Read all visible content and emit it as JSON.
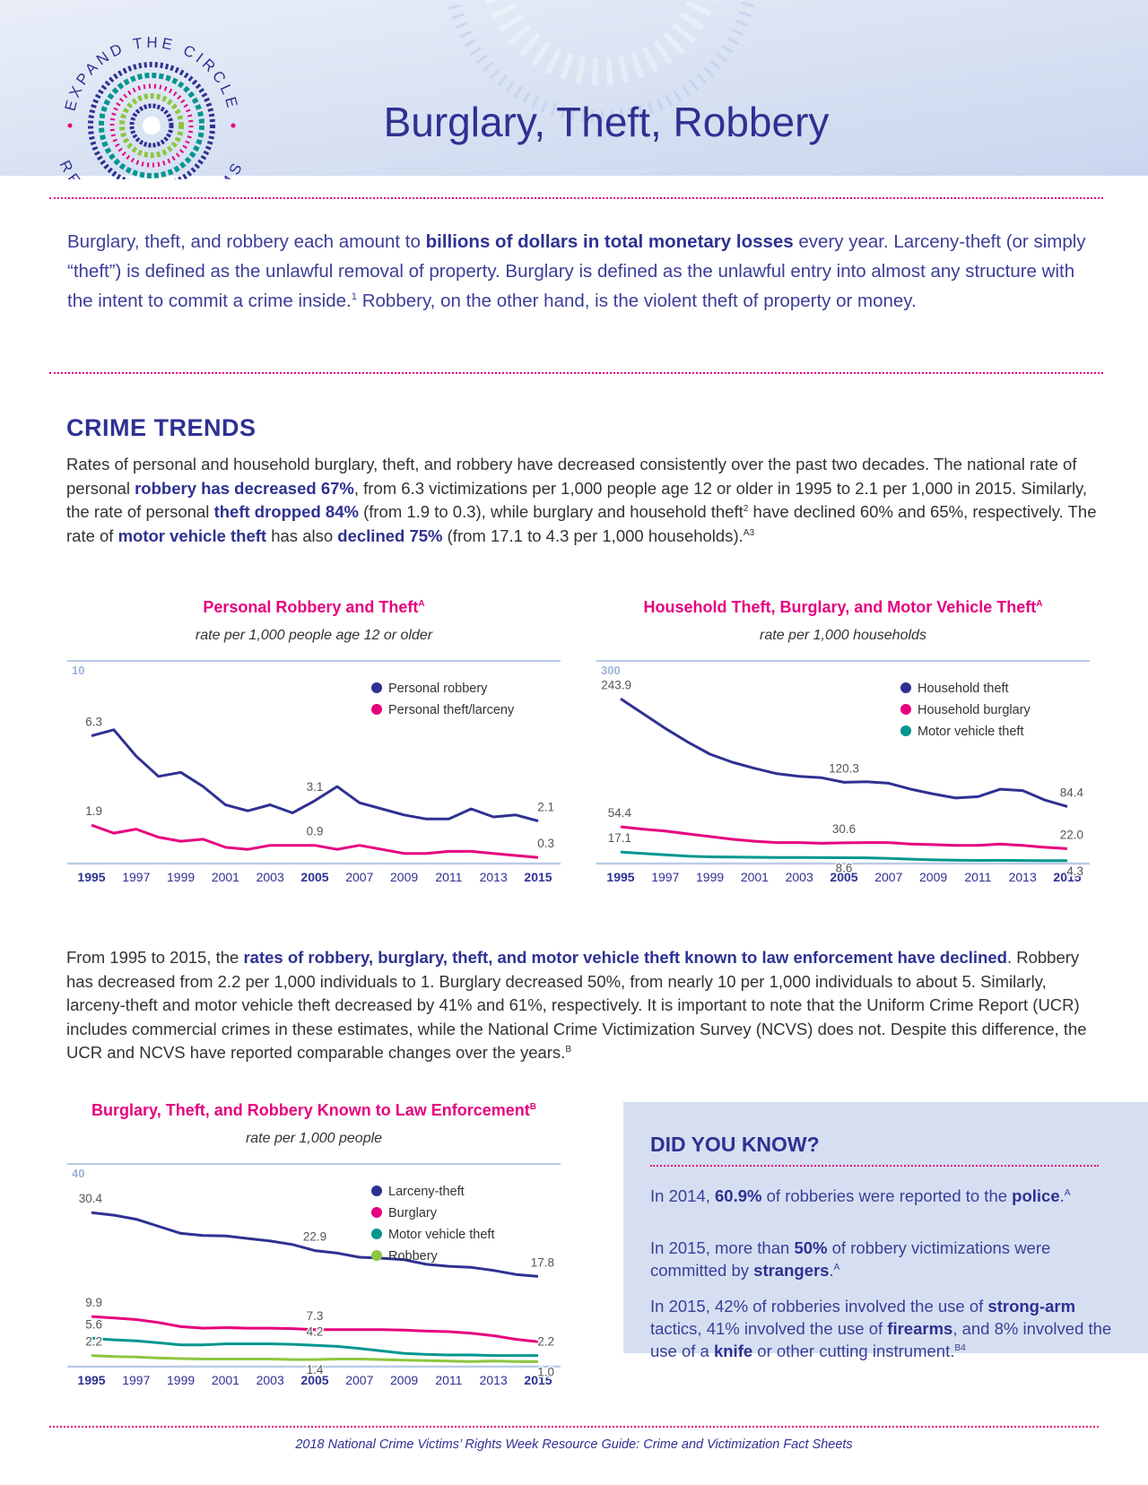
{
  "header": {
    "title": "Burglary, Theft, Robbery",
    "logo_top": "EXPAND THE CIRCLE",
    "logo_bottom": "REACH ALL VICTIMS"
  },
  "intro": [
    "Burglary, theft, and robbery each amount to ",
    {
      "text": "billions of dollars in total monetary losses",
      "bold": true
    },
    " every year. Larceny-theft (or simply “theft”) is defined as the unlawful removal of property. Burglary is defined as the unlawful entry into almost any structure with the intent to commit a crime inside.",
    {
      "text": "1",
      "sup": true
    },
    " Robbery, on the other hand, is the violent theft of property or money."
  ],
  "crime_trends": {
    "heading": "CRIME TRENDS",
    "paragraph": [
      "Rates of personal and household burglary, theft, and robbery have decreased consistently over the past two decades. The national rate of personal ",
      {
        "text": "robbery has decreased 67%",
        "bold": true
      },
      ", from 6.3 victimizations per 1,000 people age 12 or older in 1995 to 2.1 per 1,000 in 2015. Similarly, the rate of personal ",
      {
        "text": "theft dropped 84%",
        "bold": true
      },
      " (from 1.9 to 0.3), while burglary and household theft",
      {
        "text": "2",
        "sup": true
      },
      " have declined 60% and 65%, respectively. The rate of ",
      {
        "text": "motor vehicle theft",
        "bold": true
      },
      " has also ",
      {
        "text": "declined 75%",
        "bold": true
      },
      " (from 17.1 to 4.3 per 1,000 households).",
      {
        "text": "A3",
        "sup": true
      }
    ]
  },
  "chart_data": [
    {
      "type": "line",
      "title": "Personal Robbery and Theft",
      "title_note": "A",
      "subtitle": "rate per 1,000 people age 12 or older",
      "x": [
        1995,
        1996,
        1997,
        1998,
        1999,
        2000,
        2001,
        2002,
        2003,
        2004,
        2005,
        2006,
        2007,
        2008,
        2009,
        2010,
        2011,
        2012,
        2013,
        2014,
        2015
      ],
      "xlim": [
        1995,
        2015
      ],
      "xticks": [
        1995,
        1997,
        1999,
        2001,
        2003,
        2005,
        2007,
        2009,
        2011,
        2013,
        2015
      ],
      "ylim": [
        0,
        10
      ],
      "yticks": [
        10
      ],
      "legend": "top-right",
      "series": [
        {
          "name": "Personal robbery",
          "color": "#2e3192",
          "values": [
            6.3,
            6.6,
            5.3,
            4.3,
            4.5,
            3.8,
            2.9,
            2.6,
            2.9,
            2.5,
            3.1,
            3.8,
            3.0,
            2.7,
            2.4,
            2.2,
            2.2,
            2.7,
            2.3,
            2.4,
            2.1
          ],
          "value_labels": [
            "6.3",
            null,
            null,
            null,
            null,
            null,
            null,
            null,
            null,
            null,
            "3.1",
            null,
            null,
            null,
            null,
            null,
            null,
            null,
            null,
            null,
            "2.1"
          ]
        },
        {
          "name": "Personal theft/larceny",
          "color": "#e6007e",
          "values": [
            1.9,
            1.5,
            1.7,
            1.3,
            1.1,
            1.2,
            0.8,
            0.7,
            0.9,
            0.9,
            0.9,
            0.7,
            0.9,
            0.7,
            0.5,
            0.5,
            0.6,
            0.6,
            0.5,
            0.4,
            0.3
          ],
          "value_labels": [
            "1.9",
            null,
            null,
            null,
            null,
            null,
            null,
            null,
            null,
            null,
            "0.9",
            null,
            null,
            null,
            null,
            null,
            null,
            null,
            null,
            null,
            "0.3"
          ]
        }
      ]
    },
    {
      "type": "line",
      "title": "Household Theft, Burglary, and Motor Vehicle Theft",
      "title_note": "A",
      "subtitle": "rate per 1,000 households",
      "x": [
        1995,
        1996,
        1997,
        1998,
        1999,
        2000,
        2001,
        2002,
        2003,
        2004,
        2005,
        2006,
        2007,
        2008,
        2009,
        2010,
        2011,
        2012,
        2013,
        2014,
        2015
      ],
      "xlim": [
        1995,
        2015
      ],
      "xticks": [
        1995,
        1997,
        1999,
        2001,
        2003,
        2005,
        2007,
        2009,
        2011,
        2013,
        2015
      ],
      "ylim": [
        0,
        300
      ],
      "yticks": [
        300
      ],
      "legend": "top-right",
      "series": [
        {
          "name": "Household theft",
          "color": "#2e3192",
          "values": [
            243.9,
            222,
            200,
            180,
            162,
            150,
            141,
            133,
            129,
            127,
            120.3,
            121,
            119,
            110,
            103,
            97,
            99,
            110,
            108,
            94,
            84.4
          ],
          "value_labels": [
            "243.9",
            null,
            null,
            null,
            null,
            null,
            null,
            null,
            null,
            null,
            "120.3",
            null,
            null,
            null,
            null,
            null,
            null,
            null,
            null,
            null,
            "84.4"
          ]
        },
        {
          "name": "Household burglary",
          "color": "#e6007e",
          "values": [
            54.4,
            51,
            48,
            44,
            40,
            36,
            33,
            31,
            31,
            30,
            30.6,
            31,
            31,
            29,
            28,
            27,
            27,
            29,
            27,
            24,
            22.0
          ],
          "value_labels": [
            "54.4",
            null,
            null,
            null,
            null,
            null,
            null,
            null,
            null,
            null,
            "30.6",
            null,
            null,
            null,
            null,
            null,
            null,
            null,
            null,
            null,
            "22.0"
          ]
        },
        {
          "name": "Motor vehicle theft",
          "color": "#00968f",
          "values": [
            17.1,
            15,
            13,
            11,
            10,
            9.5,
            9.3,
            9.0,
            9.0,
            8.8,
            8.6,
            8.5,
            7.7,
            6.5,
            5.5,
            5.1,
            4.6,
            4.8,
            4.5,
            4.4,
            4.3
          ],
          "value_labels": [
            "17.1",
            null,
            null,
            null,
            null,
            null,
            null,
            null,
            null,
            null,
            "8.6",
            null,
            null,
            null,
            null,
            null,
            null,
            null,
            null,
            null,
            "4.3"
          ]
        }
      ]
    },
    {
      "type": "line",
      "title": "Burglary, Theft, and Robbery Known to Law Enforcement",
      "title_note": "B",
      "subtitle": "rate per 1,000 people",
      "x": [
        1995,
        1996,
        1997,
        1998,
        1999,
        2000,
        2001,
        2002,
        2003,
        2004,
        2005,
        2006,
        2007,
        2008,
        2009,
        2010,
        2011,
        2012,
        2013,
        2014,
        2015
      ],
      "xlim": [
        1995,
        2015
      ],
      "xticks": [
        1995,
        1997,
        1999,
        2001,
        2003,
        2005,
        2007,
        2009,
        2011,
        2013,
        2015
      ],
      "ylim": [
        0,
        40
      ],
      "yticks": [
        40
      ],
      "legend": "top-right",
      "series": [
        {
          "name": "Larceny-theft",
          "color": "#2e3192",
          "values": [
            30.4,
            29.9,
            29.1,
            27.7,
            26.3,
            25.9,
            25.8,
            25.3,
            24.8,
            24.1,
            22.9,
            22.4,
            21.6,
            21.4,
            21.1,
            20.2,
            19.8,
            19.6,
            19.0,
            18.2,
            17.8
          ],
          "value_labels": [
            "30.4",
            null,
            null,
            null,
            null,
            null,
            null,
            null,
            null,
            null,
            "22.9",
            null,
            null,
            null,
            null,
            null,
            null,
            null,
            null,
            null,
            "17.8"
          ]
        },
        {
          "name": "Burglary",
          "color": "#e6007e",
          "values": [
            9.9,
            9.6,
            9.3,
            8.7,
            7.9,
            7.6,
            7.7,
            7.6,
            7.6,
            7.5,
            7.3,
            7.3,
            7.3,
            7.3,
            7.2,
            7.0,
            6.9,
            6.6,
            6.1,
            5.4,
            4.9
          ],
          "value_labels": [
            "9.9",
            null,
            null,
            null,
            null,
            null,
            null,
            null,
            null,
            null,
            "7.3",
            null,
            null,
            null,
            null,
            null,
            null,
            null,
            null,
            null,
            null
          ]
        },
        {
          "name": "Motor vehicle theft",
          "color": "#00968f",
          "values": [
            5.6,
            5.3,
            5.1,
            4.7,
            4.3,
            4.3,
            4.5,
            4.5,
            4.5,
            4.4,
            4.2,
            4.0,
            3.6,
            3.1,
            2.6,
            2.4,
            2.3,
            2.3,
            2.2,
            2.2,
            2.2
          ],
          "value_labels": [
            "5.6",
            null,
            null,
            null,
            null,
            null,
            null,
            null,
            null,
            null,
            "4.2",
            null,
            null,
            null,
            null,
            null,
            null,
            null,
            null,
            null,
            "2.2"
          ]
        },
        {
          "name": "Robbery",
          "color": "#8dc63f",
          "values": [
            2.2,
            2.0,
            1.9,
            1.7,
            1.6,
            1.5,
            1.5,
            1.5,
            1.5,
            1.4,
            1.4,
            1.5,
            1.5,
            1.4,
            1.3,
            1.2,
            1.1,
            1.0,
            1.1,
            1.0,
            1.0
          ],
          "value_labels": [
            "2.2",
            null,
            null,
            null,
            null,
            null,
            null,
            null,
            null,
            null,
            "1.4",
            null,
            null,
            null,
            null,
            null,
            null,
            null,
            null,
            null,
            "1.0"
          ]
        }
      ]
    }
  ],
  "enforcement": [
    "From 1995 to 2015, the ",
    {
      "text": "rates of robbery, burglary, theft, and motor vehicle theft known to law enforcement have declined",
      "bold": true
    },
    ". Robbery has decreased from 2.2 per 1,000 individuals to 1. Burglary decreased 50%, from nearly 10 per 1,000 individuals to about 5. Similarly, larceny-theft and motor vehicle theft decreased by 41% and 61%, respectively. It is important to note that the Uniform Crime Report (UCR) includes commercial crimes in these estimates, while the National Crime Victimization Survey (NCVS) does not. Despite this difference, the UCR and NCVS have reported comparable changes over the years.",
    {
      "text": "B",
      "sup": true
    }
  ],
  "did_you_know": {
    "heading": "DID YOU KNOW?",
    "items": [
      [
        "In 2014, ",
        {
          "text": "60.9%",
          "bold": true
        },
        " of robberies were reported to the ",
        {
          "text": "police",
          "bold": true
        },
        ".",
        {
          "text": "A",
          "sup": true
        }
      ],
      [
        "In 2015, more than ",
        {
          "text": "50%",
          "bold": true
        },
        " of robbery victimizations were committed by ",
        {
          "text": "strangers",
          "bold": true
        },
        ".",
        {
          "text": "A",
          "sup": true
        }
      ],
      [
        "In 2015, 42% of robberies involved the use of ",
        {
          "text": "strong-arm",
          "bold": true
        },
        " tactics, 41% involved the use of ",
        {
          "text": "firearms",
          "bold": true
        },
        ", and 8% involved the use of a ",
        {
          "text": "knife",
          "bold": true
        },
        " or other cutting instrument.",
        {
          "text": "B4",
          "sup": true
        }
      ]
    ]
  },
  "footer": "2018 National Crime Victims’ Rights Week Resource Guide: Crime and Victimization Fact Sheets"
}
